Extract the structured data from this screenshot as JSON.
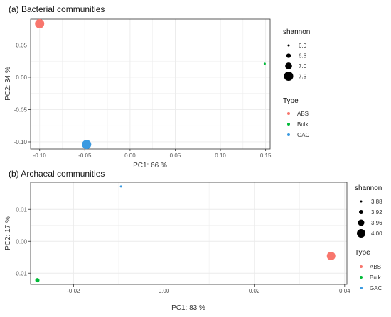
{
  "chart_data": [
    {
      "type": "scatter",
      "title": "(a) Bacterial communities",
      "xlabel": "PC1:  66 %",
      "ylabel": "PC2:  34 %",
      "xlim": [
        -0.11,
        0.155
      ],
      "ylim": [
        -0.111,
        0.09
      ],
      "xticks": [
        -0.1,
        -0.05,
        0.0,
        0.05,
        0.1,
        0.15
      ],
      "xtick_labels": [
        "-0.10",
        "-0.05",
        "0.00",
        "0.05",
        "0.10",
        "0.15"
      ],
      "yticks": [
        -0.1,
        -0.05,
        0.0,
        0.05
      ],
      "ytick_labels": [
        "-0.10",
        "-0.05",
        "0.00",
        "0.05"
      ],
      "grid": true,
      "size_legend": {
        "title": "shannon",
        "values": [
          6.0,
          6.5,
          7.0,
          7.5
        ],
        "labels": [
          "6.0",
          "6.5",
          "7.0",
          "7.5"
        ]
      },
      "color_legend": {
        "title": "Type",
        "labels": [
          "ABS",
          "Bulk",
          "GAC"
        ]
      },
      "points": [
        {
          "type": "ABS",
          "x": -0.1,
          "y": 0.083,
          "shannon": 7.5
        },
        {
          "type": "Bulk",
          "x": 0.149,
          "y": 0.021,
          "shannon": 6.0
        },
        {
          "type": "GAC",
          "x": -0.048,
          "y": -0.104,
          "shannon": 7.5
        }
      ]
    },
    {
      "type": "scatter",
      "title": "(b) Archaeal communities",
      "xlabel": "PC1:  83 %",
      "ylabel": "PC2:  17 %",
      "xlim": [
        -0.0295,
        0.0405
      ],
      "ylim": [
        -0.0135,
        0.0185
      ],
      "xticks": [
        -0.02,
        0.0,
        0.02,
        0.04
      ],
      "xtick_labels": [
        "-0.02",
        "0.00",
        "0.02",
        "0.04"
      ],
      "yticks": [
        -0.01,
        0.0,
        0.01
      ],
      "ytick_labels": [
        "-0.01",
        "0.00",
        "0.01"
      ],
      "grid": true,
      "size_legend": {
        "title": "shannon",
        "values": [
          3.88,
          3.92,
          3.96,
          4.0
        ],
        "labels": [
          "3.88",
          "3.92",
          "3.96",
          "4.00"
        ]
      },
      "color_legend": {
        "title": "Type",
        "labels": [
          "ABS",
          "Bulk",
          "GAC"
        ]
      },
      "points": [
        {
          "type": "ABS",
          "x": 0.037,
          "y": -0.0046,
          "shannon": 4.0
        },
        {
          "type": "Bulk",
          "x": -0.028,
          "y": -0.0122,
          "shannon": 3.92
        },
        {
          "type": "GAC",
          "x": -0.0095,
          "y": 0.0172,
          "shannon": 3.87
        }
      ]
    }
  ],
  "colors": {
    "ABS": "#F8766D",
    "Bulk": "#00BA38",
    "GAC": "#3B9AE1",
    "grid": "#EBEBEB",
    "panel_border": "#333333",
    "legend_dot": "#000000"
  }
}
